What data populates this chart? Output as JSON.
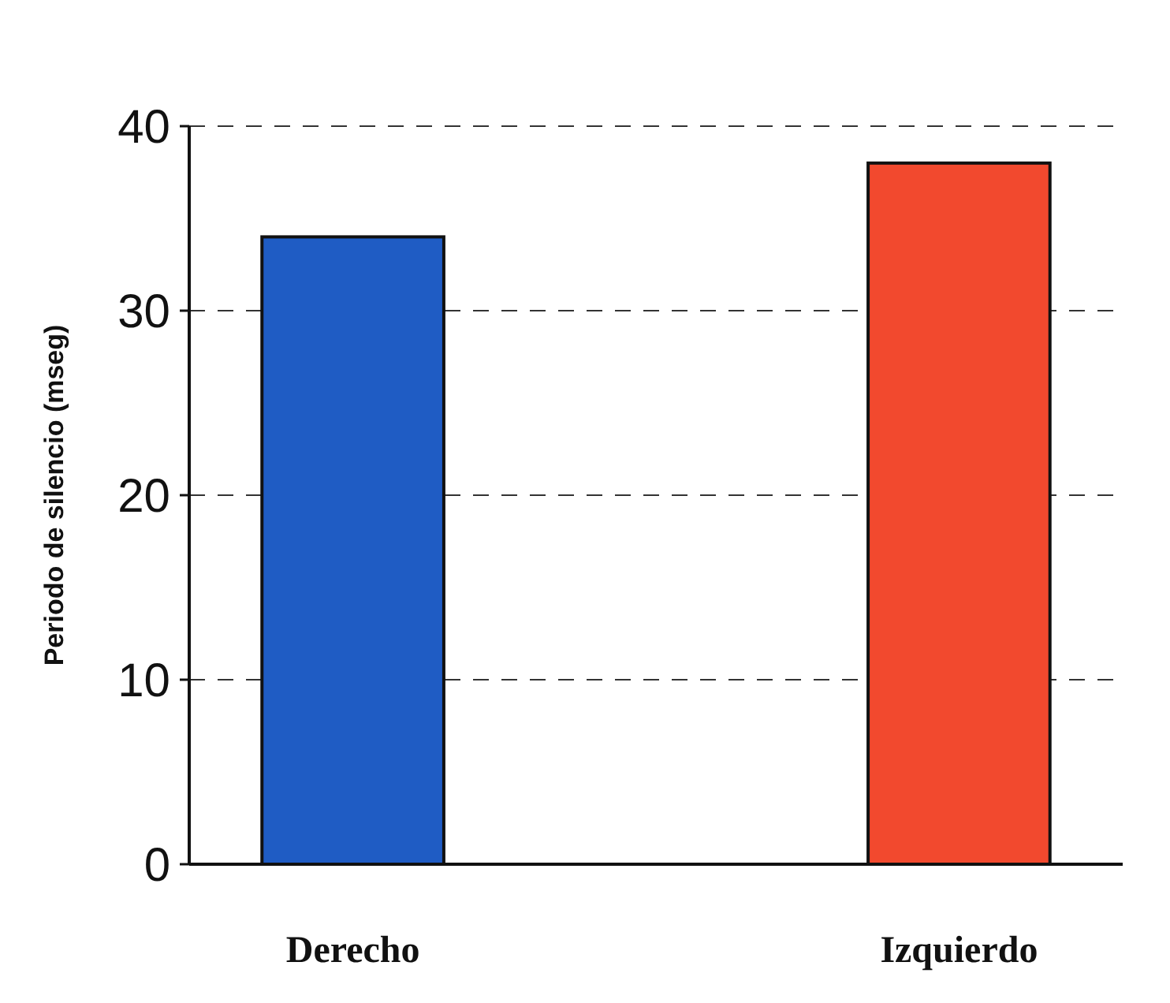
{
  "chart_data": {
    "type": "bar",
    "ylabel": "Periodo de silencio (mseg)",
    "categories": [
      "Derecho",
      "Izquierdo"
    ],
    "values": [
      34,
      38
    ],
    "colors": [
      "#1f5cc4",
      "#f2492e"
    ],
    "ylim": [
      0,
      40
    ],
    "yticks": [
      0,
      10,
      20,
      30,
      40
    ],
    "grid": "y"
  }
}
